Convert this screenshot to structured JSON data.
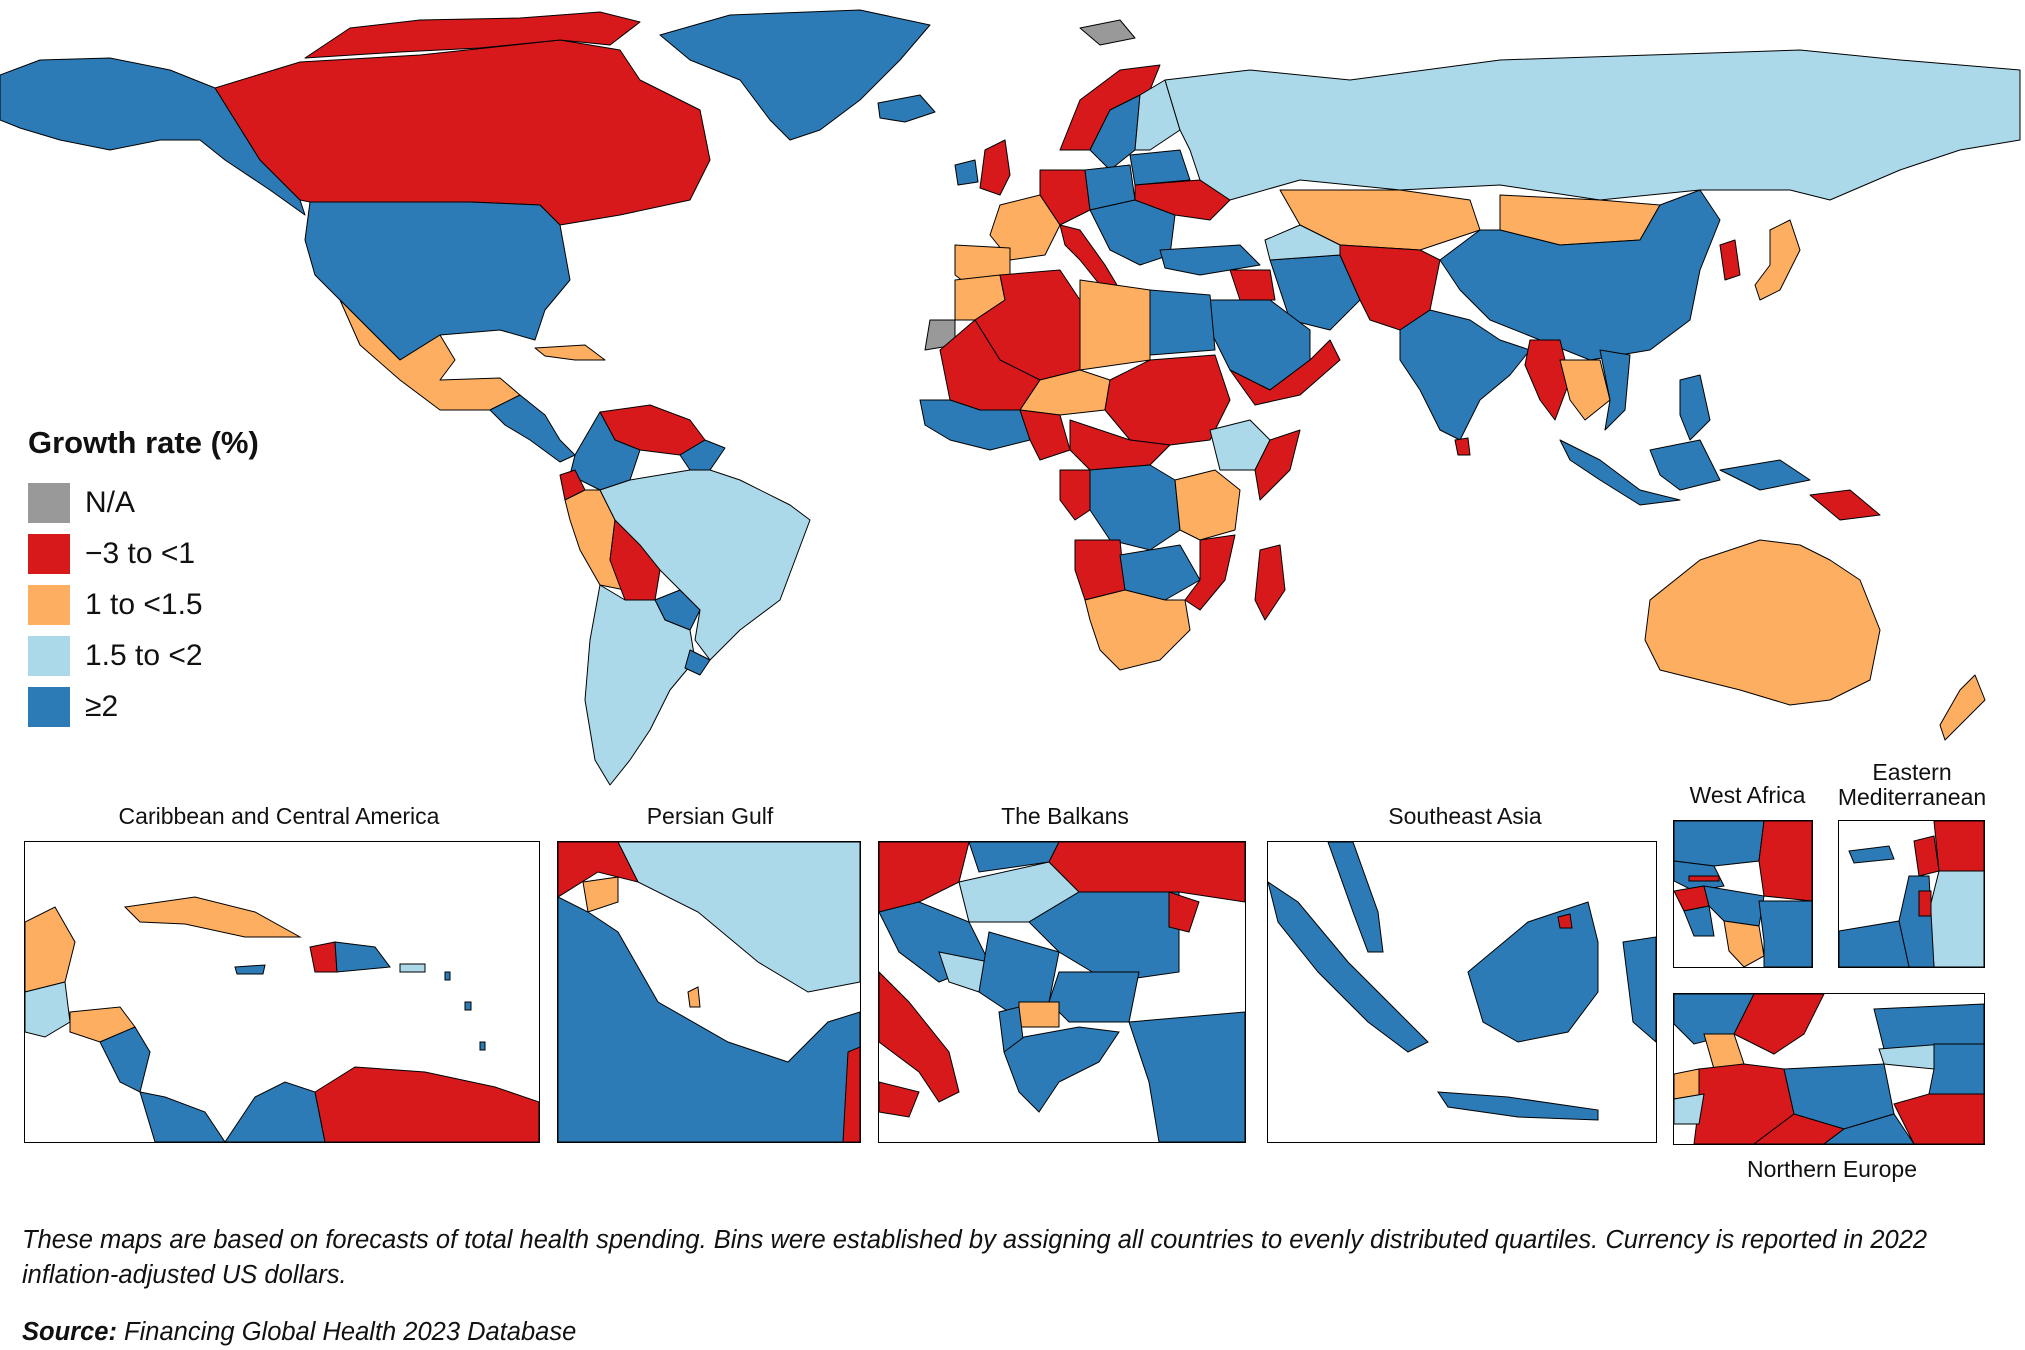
{
  "legend": {
    "title": "Growth rate (%)",
    "items": [
      {
        "label": "N/A",
        "color": "#999999"
      },
      {
        "label": "−3 to <1",
        "color": "#d7191c"
      },
      {
        "label": "1 to <1.5",
        "color": "#fdae61"
      },
      {
        "label": "1.5 to <2",
        "color": "#abd9e9"
      },
      {
        "label": "≥2",
        "color": "#2c7bb6"
      }
    ]
  },
  "insets": [
    {
      "key": "caribbean",
      "title": "Caribbean and Central America"
    },
    {
      "key": "persian_gulf",
      "title": "Persian Gulf"
    },
    {
      "key": "balkans",
      "title": "The Balkans"
    },
    {
      "key": "southeast_asia",
      "title": "Southeast Asia"
    },
    {
      "key": "west_africa",
      "title": "West Africa"
    },
    {
      "key": "eastern_med",
      "title": "Eastern Mediterranean"
    },
    {
      "key": "northern_europe",
      "title": "Northern Europe"
    }
  ],
  "footnote": "These maps are based on forecasts of total health spending. Bins were established by assigning all countries to evenly distributed quartiles. Currency is reported in 2022 inflation-adjusted US dollars.",
  "source": {
    "label": "Source:",
    "text": "Financing Global Health 2023 Database"
  }
}
